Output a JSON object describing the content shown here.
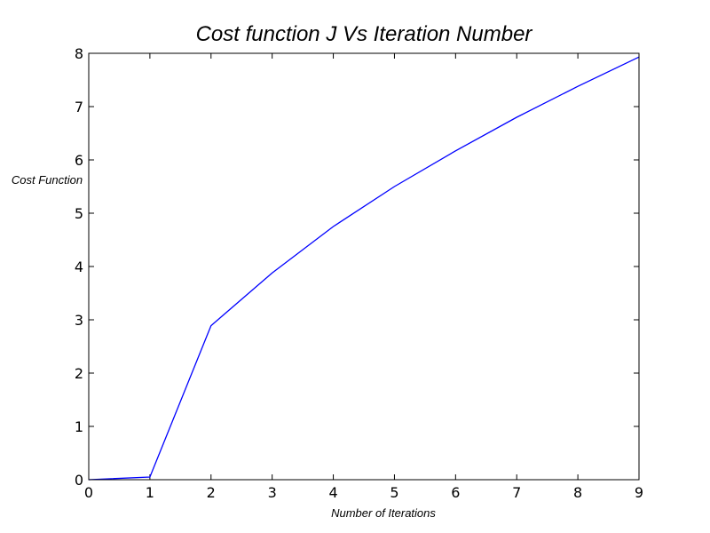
{
  "chart_data": {
    "type": "line",
    "title": "Cost function J Vs Iteration Number",
    "xlabel": "Number of Iterations",
    "ylabel": "Cost Function",
    "xlim": [
      0,
      9
    ],
    "ylim": [
      0,
      8
    ],
    "xticks": [
      0,
      1,
      2,
      3,
      4,
      5,
      6,
      7,
      8,
      9
    ],
    "yticks": [
      0,
      1,
      2,
      3,
      4,
      5,
      6,
      7,
      8
    ],
    "grid": false,
    "series": [
      {
        "color": "#0000ff",
        "x": [
          0,
          1,
          2,
          3,
          4,
          5,
          6,
          7,
          8,
          9
        ],
        "y": [
          0.0,
          0.05,
          2.89,
          3.88,
          4.75,
          5.5,
          6.17,
          6.8,
          7.38,
          7.93
        ]
      }
    ]
  }
}
